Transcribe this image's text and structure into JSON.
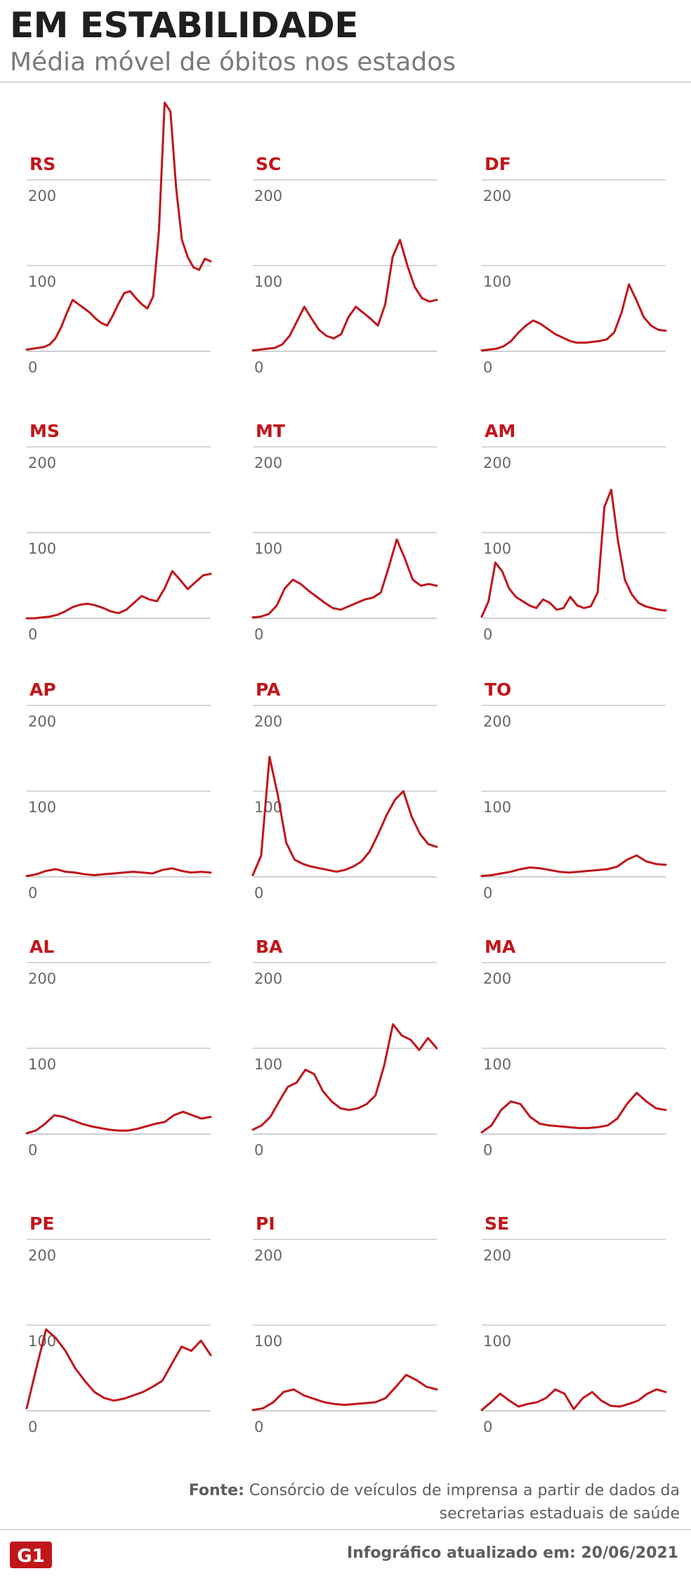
{
  "title": "EM ESTABILIDADE",
  "subtitle": "Média móvel de óbitos nos estados",
  "footer": {
    "source_label": "Fonte:",
    "source_text": "Consórcio de veículos de imprensa a partir de dados da secretarias estaduais de saúde",
    "updated": "Infográfico atualizado em: 20/06/2021",
    "logo_text": "G1"
  },
  "colors": {
    "line": "#c0161b",
    "state_label": "#c0161b",
    "grid": "#bfbfbf",
    "axis_text": "#666666",
    "title": "#1f1f1f"
  },
  "chart_data": [
    {
      "type": "line",
      "title": "RS",
      "ylim": [
        0,
        200
      ],
      "yticks": [
        0,
        100,
        200
      ],
      "values": [
        2,
        3,
        4,
        5,
        8,
        15,
        28,
        45,
        60,
        55,
        50,
        45,
        38,
        33,
        30,
        42,
        56,
        68,
        70,
        62,
        55,
        50,
        64,
        140,
        290,
        280,
        190,
        130,
        110,
        98,
        95,
        108,
        105
      ]
    },
    {
      "type": "line",
      "title": "SC",
      "ylim": [
        0,
        200
      ],
      "yticks": [
        0,
        100,
        200
      ],
      "values": [
        1,
        2,
        3,
        4,
        8,
        18,
        35,
        52,
        38,
        25,
        18,
        15,
        20,
        40,
        52,
        45,
        38,
        30,
        55,
        110,
        130,
        100,
        75,
        62,
        58,
        60
      ]
    },
    {
      "type": "line",
      "title": "DF",
      "ylim": [
        0,
        200
      ],
      "yticks": [
        0,
        100,
        200
      ],
      "values": [
        1,
        2,
        3,
        6,
        12,
        22,
        30,
        36,
        32,
        26,
        20,
        16,
        12,
        10,
        10,
        11,
        12,
        14,
        22,
        45,
        78,
        60,
        40,
        30,
        25,
        24
      ]
    },
    {
      "type": "line",
      "title": "MS",
      "ylim": [
        0,
        200
      ],
      "yticks": [
        0,
        100,
        200
      ],
      "values": [
        0,
        0,
        1,
        2,
        4,
        8,
        13,
        16,
        17,
        15,
        12,
        8,
        6,
        10,
        18,
        26,
        22,
        20,
        35,
        55,
        45,
        34,
        42,
        50,
        52
      ]
    },
    {
      "type": "line",
      "title": "MT",
      "ylim": [
        0,
        200
      ],
      "yticks": [
        0,
        100,
        200
      ],
      "values": [
        1,
        2,
        5,
        15,
        35,
        45,
        40,
        32,
        25,
        18,
        12,
        10,
        14,
        18,
        22,
        24,
        30,
        60,
        92,
        70,
        45,
        38,
        40,
        38
      ]
    },
    {
      "type": "line",
      "title": "AM",
      "ylim": [
        0,
        200
      ],
      "yticks": [
        0,
        100,
        200
      ],
      "values": [
        2,
        20,
        65,
        55,
        35,
        25,
        20,
        15,
        12,
        22,
        18,
        10,
        12,
        25,
        15,
        12,
        14,
        30,
        130,
        150,
        90,
        45,
        28,
        18,
        14,
        12,
        10,
        9
      ]
    },
    {
      "type": "line",
      "title": "AP",
      "ylim": [
        0,
        200
      ],
      "yticks": [
        0,
        100,
        200
      ],
      "values": [
        1,
        3,
        7,
        9,
        6,
        5,
        3,
        2,
        3,
        4,
        5,
        6,
        5,
        4,
        8,
        10,
        7,
        5,
        6,
        5
      ]
    },
    {
      "type": "line",
      "title": "PA",
      "ylim": [
        0,
        200
      ],
      "yticks": [
        0,
        100,
        200
      ],
      "values": [
        2,
        25,
        140,
        95,
        40,
        20,
        15,
        12,
        10,
        8,
        6,
        8,
        12,
        18,
        30,
        50,
        72,
        90,
        100,
        70,
        50,
        38,
        35
      ]
    },
    {
      "type": "line",
      "title": "TO",
      "ylim": [
        0,
        200
      ],
      "yticks": [
        0,
        100,
        200
      ],
      "values": [
        1,
        2,
        4,
        6,
        9,
        11,
        10,
        8,
        6,
        5,
        6,
        7,
        8,
        9,
        12,
        20,
        25,
        18,
        15,
        14
      ]
    },
    {
      "type": "line",
      "title": "AL",
      "ylim": [
        0,
        200
      ],
      "yticks": [
        0,
        100,
        200
      ],
      "values": [
        1,
        4,
        12,
        22,
        20,
        16,
        12,
        9,
        7,
        5,
        4,
        4,
        6,
        9,
        12,
        14,
        22,
        26,
        22,
        18,
        20
      ]
    },
    {
      "type": "line",
      "title": "BA",
      "ylim": [
        0,
        200
      ],
      "yticks": [
        0,
        100,
        200
      ],
      "values": [
        5,
        10,
        20,
        38,
        55,
        60,
        75,
        70,
        50,
        38,
        30,
        28,
        30,
        35,
        45,
        80,
        128,
        115,
        110,
        98,
        112,
        100
      ]
    },
    {
      "type": "line",
      "title": "MA",
      "ylim": [
        0,
        200
      ],
      "yticks": [
        0,
        100,
        200
      ],
      "values": [
        2,
        10,
        28,
        38,
        35,
        20,
        12,
        10,
        9,
        8,
        7,
        7,
        8,
        10,
        18,
        35,
        48,
        38,
        30,
        28
      ]
    },
    {
      "type": "line",
      "title": "PE",
      "ylim": [
        0,
        200
      ],
      "yticks": [
        0,
        100,
        200
      ],
      "values": [
        3,
        50,
        95,
        85,
        70,
        50,
        35,
        22,
        15,
        12,
        14,
        18,
        22,
        28,
        35,
        55,
        75,
        70,
        82,
        65
      ]
    },
    {
      "type": "line",
      "title": "PI",
      "ylim": [
        0,
        200
      ],
      "yticks": [
        0,
        100,
        200
      ],
      "values": [
        1,
        3,
        10,
        22,
        25,
        18,
        14,
        10,
        8,
        7,
        8,
        9,
        10,
        15,
        28,
        42,
        36,
        28,
        25
      ]
    },
    {
      "type": "line",
      "title": "SE",
      "ylim": [
        0,
        200
      ],
      "yticks": [
        0,
        100,
        200
      ],
      "values": [
        1,
        10,
        20,
        12,
        5,
        8,
        10,
        15,
        25,
        20,
        2,
        15,
        22,
        12,
        6,
        5,
        8,
        12,
        20,
        25,
        22
      ]
    }
  ]
}
